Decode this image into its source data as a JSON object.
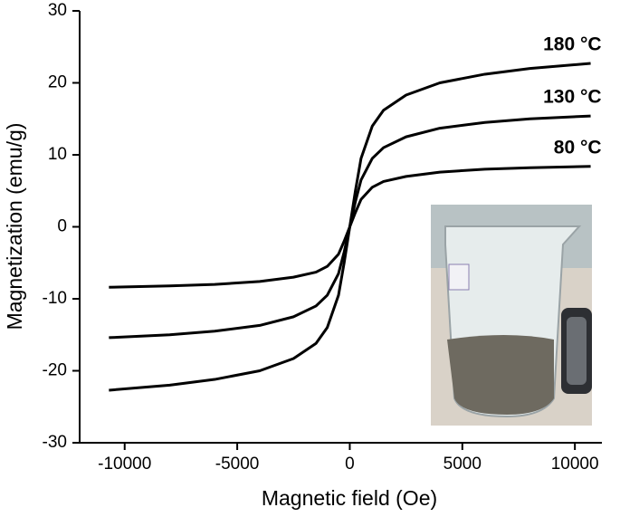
{
  "chart_data": {
    "type": "line",
    "xlabel": "Magnetic field  (Oe)",
    "ylabel": "Magnetization (emu/g)",
    "x": [
      -10700,
      -8000,
      -6000,
      -4000,
      -2500,
      -1500,
      -1000,
      -500,
      -250,
      0,
      250,
      500,
      1000,
      1500,
      2500,
      4000,
      6000,
      8000,
      10700
    ],
    "series": [
      {
        "name": "180 °C",
        "color": "#000000",
        "values": [
          -22.7,
          -22,
          -21.2,
          -20,
          -18.3,
          -16.2,
          -14,
          -9.5,
          -5,
          0,
          5,
          9.5,
          14,
          16.2,
          18.3,
          20,
          21.2,
          22,
          22.7
        ]
      },
      {
        "name": "130 °C",
        "color": "#000000",
        "values": [
          -15.4,
          -15,
          -14.5,
          -13.7,
          -12.5,
          -11,
          -9.5,
          -6.5,
          -3.5,
          0,
          3.5,
          6.5,
          9.5,
          11,
          12.5,
          13.7,
          14.5,
          15,
          15.4
        ]
      },
      {
        "name": "80 °C",
        "color": "#000000",
        "values": [
          -8.4,
          -8.2,
          -8,
          -7.6,
          -7,
          -6.3,
          -5.5,
          -3.8,
          -2,
          0,
          2,
          3.8,
          5.5,
          6.3,
          7,
          7.6,
          8,
          8.2,
          8.4
        ]
      }
    ],
    "xlim": [
      -12000,
      11200
    ],
    "ylim": [
      -30,
      30
    ],
    "xticks": [
      -10000,
      -5000,
      0,
      5000,
      10000
    ],
    "yticks": [
      -30,
      -20,
      -10,
      0,
      10,
      20,
      30
    ]
  }
}
